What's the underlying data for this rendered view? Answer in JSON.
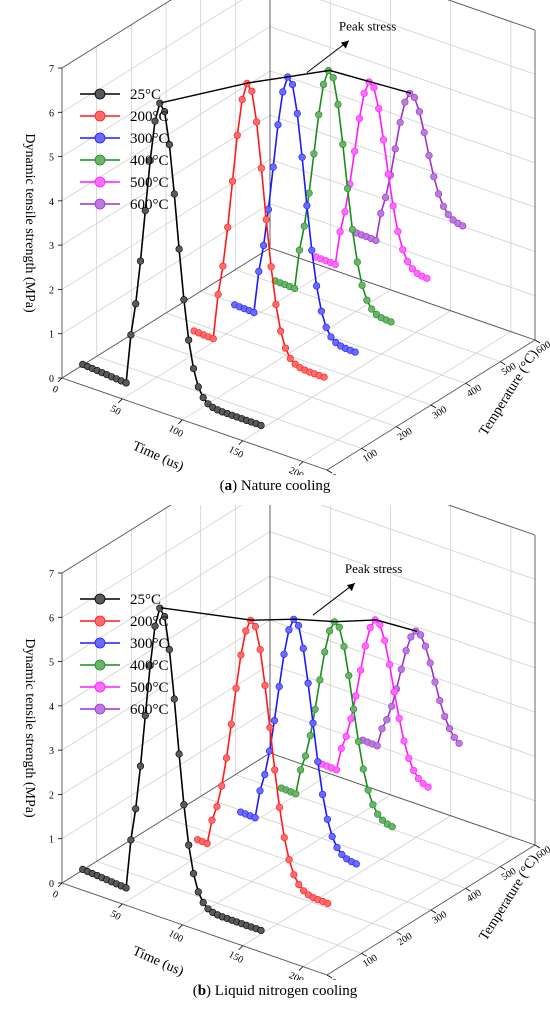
{
  "chart_data": [
    {
      "type": "line",
      "panel_letter": "a",
      "caption_rest": " Nature cooling",
      "zlabel": "Dynamic tensile strength (MPa)",
      "xlabel": "Time (us)",
      "ylabel": "Temperature (°C)",
      "annotation": "Peak stress",
      "zlim": [
        0,
        7
      ],
      "xlim": [
        0,
        220
      ],
      "ylim": [
        0,
        600
      ],
      "z_ticks": [
        0,
        1,
        2,
        3,
        4,
        5,
        6,
        7
      ],
      "x_ticks": [
        0,
        50,
        100,
        150,
        200
      ],
      "y_ticks": [
        0,
        100,
        200,
        300,
        400,
        500,
        600
      ],
      "legend_position": "top-left",
      "grid": true,
      "series": [
        {
          "name": "25°C",
          "temperature": 25,
          "color": "#000000",
          "peak_time": 75,
          "peak": 6.8,
          "base": 0.3,
          "sigma": 13,
          "tail": 0.3,
          "t_end": 160
        },
        {
          "name": "200°C",
          "temperature": 200,
          "color": "#ff1a1a",
          "peak_time": 97,
          "peak": 6.6,
          "base": 0.65,
          "sigma": 13,
          "tail": 0.55,
          "t_end": 160
        },
        {
          "name": "300°C",
          "temperature": 300,
          "color": "#1a1aff",
          "peak_time": 102,
          "peak": 6.3,
          "base": 0.8,
          "sigma": 13,
          "tail": 0.6,
          "t_end": 160
        },
        {
          "name": "400°C",
          "temperature": 400,
          "color": "#1a8c1a",
          "peak_time": 107,
          "peak": 6.0,
          "base": 0.9,
          "sigma": 13,
          "tail": 0.8,
          "t_end": 160
        },
        {
          "name": "500°C",
          "temperature": 500,
          "color": "#ff1aff",
          "peak_time": 112,
          "peak": 5.3,
          "base": 1.0,
          "sigma": 13,
          "tail": 1.3,
          "t_end": 160
        },
        {
          "name": "600°C",
          "temperature": 600,
          "color": "#9933cc",
          "peak_time": 117,
          "peak": 4.6,
          "base": 1.1,
          "sigma": 13,
          "tail": 2.0,
          "t_end": 160
        }
      ]
    },
    {
      "type": "line",
      "panel_letter": "b",
      "caption_rest": " Liquid nitrogen cooling",
      "zlabel": "Dynamic tensile strength (MPa)",
      "xlabel": "Time (us)",
      "ylabel": "Temperature (°C)",
      "annotation": "Peak stress",
      "zlim": [
        0,
        7
      ],
      "xlim": [
        0,
        220
      ],
      "ylim": [
        0,
        600
      ],
      "z_ticks": [
        0,
        1,
        2,
        3,
        4,
        5,
        6,
        7
      ],
      "x_ticks": [
        0,
        50,
        100,
        150,
        200
      ],
      "y_ticks": [
        0,
        100,
        200,
        300,
        400,
        500,
        600
      ],
      "legend_position": "top-left",
      "grid": true,
      "series": [
        {
          "name": "25°C",
          "temperature": 25,
          "color": "#000000",
          "peak_time": 75,
          "peak": 6.8,
          "base": 0.3,
          "sigma": 13,
          "tail": 0.3,
          "t_end": 160
        },
        {
          "name": "200°C",
          "temperature": 200,
          "color": "#ff1a1a",
          "peak_time": 100,
          "peak": 5.9,
          "base": 0.6,
          "sigma": 15,
          "tail": 0.1,
          "t_end": 165
        },
        {
          "name": "300°C",
          "temperature": 300,
          "color": "#1a1aff",
          "peak_time": 107,
          "peak": 5.5,
          "base": 0.8,
          "sigma": 14,
          "tail": 0.45,
          "t_end": 160
        },
        {
          "name": "400°C",
          "temperature": 400,
          "color": "#1a8c1a",
          "peak_time": 112,
          "peak": 5.0,
          "base": 0.9,
          "sigma": 14,
          "tail": 0.8,
          "t_end": 160
        },
        {
          "name": "500°C",
          "temperature": 500,
          "color": "#ff1aff",
          "peak_time": 117,
          "peak": 4.6,
          "base": 1.0,
          "sigma": 14,
          "tail": 1.2,
          "t_end": 160
        },
        {
          "name": "600°C",
          "temperature": 600,
          "color": "#9933cc",
          "peak_time": 122,
          "peak": 3.9,
          "base": 1.1,
          "sigma": 14,
          "tail": 1.6,
          "t_end": 160
        }
      ]
    }
  ]
}
